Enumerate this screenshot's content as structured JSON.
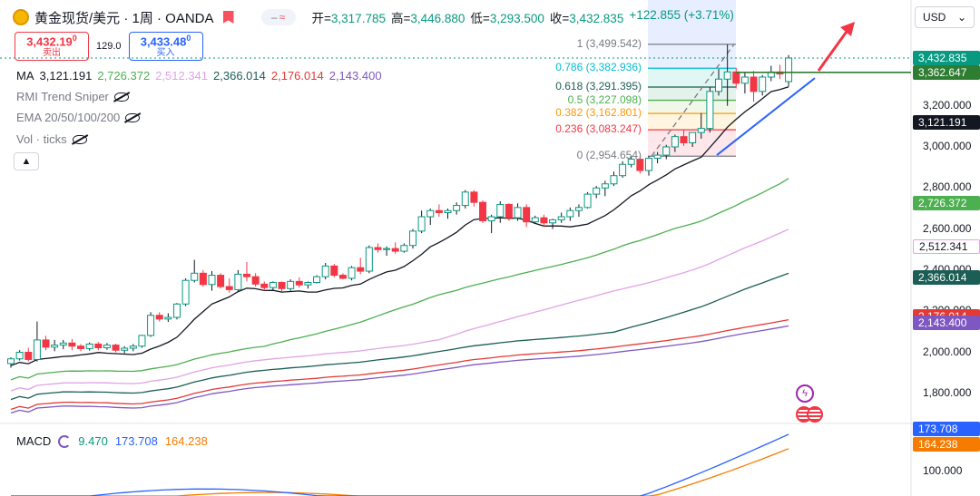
{
  "header": {
    "title": "黄金现货/美元 · 1周 · OANDA",
    "open_label": "开",
    "open": "3,317.785",
    "high_label": "高",
    "high": "3,446.880",
    "low_label": "低",
    "low": "3,293.500",
    "close_label": "收",
    "close": "3,432.835",
    "change": "+122.855 (+3.71%)",
    "visibility_icon": "tilde-icon"
  },
  "trade": {
    "sell_price": "3,432.19",
    "sell_sup": "0",
    "sell_label": "卖出",
    "spread": "129.0",
    "buy_price": "3,433.48",
    "buy_sup": "0",
    "buy_label": "买入"
  },
  "indicators": {
    "ma_label": "MA",
    "ma_values": [
      "3,121.191",
      "2,726.372",
      "2,512.341",
      "2,366.014",
      "2,176.014",
      "2,143.400"
    ],
    "ma_colors": [
      "#131722",
      "#4caf50",
      "#e1a3e6",
      "#1b5e55",
      "#e53935",
      "#7e57c2"
    ],
    "rmi": "RMI Trend Sniper",
    "ema": "EMA 20/50/100/200",
    "vol": "Vol · ticks",
    "collapse_icon": "chevron-up-icon"
  },
  "currency": "USD",
  "price_axis": {
    "ticks": [
      "3,200.000",
      "3,000.000",
      "2,800.000",
      "2,600.000",
      "2,400.000",
      "2,200.000",
      "2,000.000",
      "1,800.000"
    ],
    "tags": [
      {
        "text": "3,432.835",
        "color": "#089981"
      },
      {
        "text": "3,362.647",
        "color": "#2e7d32"
      },
      {
        "text": "3,121.191",
        "color": "#131722"
      },
      {
        "text": "2,726.372",
        "color": "#4caf50"
      },
      {
        "text": "2,512.341",
        "color": "#ffffff"
      },
      {
        "text": "2,366.014",
        "color": "#1b5e55"
      },
      {
        "text": "2,176.014",
        "color": "#e53935"
      },
      {
        "text": "2,143.400",
        "color": "#7e57c2"
      }
    ]
  },
  "fib": [
    {
      "text": "1 (3,499.542)",
      "color": "#787b86"
    },
    {
      "text": "0.786 (3,382.936)",
      "color": "#00bcd4"
    },
    {
      "text": "0.618 (3,291.395)",
      "color": "#1b5e55"
    },
    {
      "text": "0.5 (3,227.098)",
      "color": "#4caf50"
    },
    {
      "text": "0.382 (3,162.801)",
      "color": "#ff9800"
    },
    {
      "text": "0.236 (3,083.247)",
      "color": "#f23645"
    },
    {
      "text": "0 (2,954.654)",
      "color": "#787b86"
    }
  ],
  "macd": {
    "label": "MACD",
    "hist": "9.470",
    "macd": "173.708",
    "signal": "164.238",
    "axis_tick": "100.000",
    "tags": [
      {
        "text": "173.708",
        "color": "#2962ff"
      },
      {
        "text": "164.238",
        "color": "#f57c00"
      }
    ]
  },
  "badges": {
    "bolt_icon": "lightning-icon",
    "flag_icon": "us-flag-icon"
  },
  "chart_data": {
    "type": "candlestick",
    "title": "黄金现货/美元 · 1周 · OANDA",
    "ylim": [
      1700,
      3560
    ],
    "candles": [
      [
        1945,
        1975,
        1925,
        1968
      ],
      [
        1968,
        2010,
        1960,
        2000
      ],
      [
        2000,
        2022,
        1955,
        1965
      ],
      [
        1965,
        2150,
        1955,
        2060
      ],
      [
        2060,
        2080,
        2010,
        2025
      ],
      [
        2025,
        2060,
        2005,
        2035
      ],
      [
        2035,
        2060,
        2015,
        2045
      ],
      [
        2045,
        2065,
        2010,
        2030
      ],
      [
        2030,
        2040,
        2005,
        2018
      ],
      [
        2018,
        2048,
        2008,
        2040
      ],
      [
        2040,
        2050,
        2010,
        2022
      ],
      [
        2022,
        2045,
        2012,
        2035
      ],
      [
        2035,
        2042,
        2000,
        2010
      ],
      [
        2010,
        2030,
        1995,
        2020
      ],
      [
        2020,
        2040,
        2005,
        2030
      ],
      [
        2030,
        2085,
        2022,
        2082
      ],
      [
        2082,
        2195,
        2075,
        2180
      ],
      [
        2180,
        2195,
        2150,
        2162
      ],
      [
        2162,
        2190,
        2148,
        2170
      ],
      [
        2170,
        2240,
        2160,
        2235
      ],
      [
        2235,
        2360,
        2225,
        2350
      ],
      [
        2350,
        2450,
        2340,
        2385
      ],
      [
        2385,
        2400,
        2320,
        2330
      ],
      [
        2330,
        2395,
        2300,
        2375
      ],
      [
        2375,
        2385,
        2310,
        2320
      ],
      [
        2320,
        2360,
        2290,
        2305
      ],
      [
        2305,
        2400,
        2295,
        2380
      ],
      [
        2380,
        2440,
        2345,
        2368
      ],
      [
        2368,
        2385,
        2320,
        2332
      ],
      [
        2332,
        2345,
        2300,
        2315
      ],
      [
        2315,
        2345,
        2300,
        2340
      ],
      [
        2340,
        2345,
        2295,
        2310
      ],
      [
        2310,
        2355,
        2300,
        2345
      ],
      [
        2345,
        2365,
        2315,
        2328
      ],
      [
        2328,
        2345,
        2310,
        2340
      ],
      [
        2340,
        2375,
        2335,
        2368
      ],
      [
        2368,
        2435,
        2355,
        2420
      ],
      [
        2420,
        2430,
        2365,
        2375
      ],
      [
        2375,
        2385,
        2355,
        2360
      ],
      [
        2360,
        2420,
        2350,
        2412
      ],
      [
        2412,
        2460,
        2380,
        2395
      ],
      [
        2395,
        2520,
        2385,
        2510
      ],
      [
        2510,
        2530,
        2485,
        2500
      ],
      [
        2500,
        2515,
        2470,
        2505
      ],
      [
        2505,
        2535,
        2480,
        2492
      ],
      [
        2492,
        2530,
        2485,
        2520
      ],
      [
        2520,
        2600,
        2505,
        2590
      ],
      [
        2590,
        2690,
        2580,
        2660
      ],
      [
        2660,
        2700,
        2620,
        2690
      ],
      [
        2690,
        2720,
        2660,
        2680
      ],
      [
        2680,
        2700,
        2650,
        2690
      ],
      [
        2690,
        2730,
        2670,
        2715
      ],
      [
        2715,
        2790,
        2700,
        2780
      ],
      [
        2780,
        2790,
        2710,
        2730
      ],
      [
        2730,
        2740,
        2630,
        2640
      ],
      [
        2640,
        2670,
        2580,
        2660
      ],
      [
        2660,
        2735,
        2630,
        2720
      ],
      [
        2720,
        2725,
        2640,
        2655
      ],
      [
        2655,
        2725,
        2640,
        2705
      ],
      [
        2705,
        2720,
        2610,
        2635
      ],
      [
        2635,
        2665,
        2625,
        2655
      ],
      [
        2655,
        2670,
        2610,
        2630
      ],
      [
        2630,
        2650,
        2600,
        2645
      ],
      [
        2645,
        2680,
        2630,
        2660
      ],
      [
        2660,
        2705,
        2640,
        2690
      ],
      [
        2690,
        2720,
        2660,
        2705
      ],
      [
        2705,
        2780,
        2700,
        2770
      ],
      [
        2770,
        2810,
        2750,
        2800
      ],
      [
        2800,
        2835,
        2760,
        2820
      ],
      [
        2820,
        2880,
        2810,
        2860
      ],
      [
        2860,
        2930,
        2850,
        2915
      ],
      [
        2915,
        2955,
        2900,
        2940
      ],
      [
        2940,
        2955,
        2870,
        2885
      ],
      [
        2885,
        2955,
        2860,
        2945
      ],
      [
        2945,
        2975,
        2920,
        2960
      ],
      [
        2960,
        3010,
        2940,
        3000
      ],
      [
        3000,
        3060,
        2975,
        3050
      ],
      [
        3050,
        3085,
        3005,
        3020
      ],
      [
        3020,
        3060,
        3000,
        3070
      ],
      [
        3070,
        3165,
        3040,
        3090
      ],
      [
        3090,
        3290,
        3070,
        3270
      ],
      [
        3270,
        3380,
        3250,
        3330
      ],
      [
        3330,
        3499,
        3200,
        3365
      ],
      [
        3365,
        3385,
        3285,
        3310
      ],
      [
        3310,
        3365,
        3260,
        3340
      ],
      [
        3340,
        3370,
        3220,
        3270
      ],
      [
        3270,
        3350,
        3250,
        3340
      ],
      [
        3340,
        3395,
        3320,
        3365
      ],
      [
        3365,
        3400,
        3330,
        3355
      ],
      [
        3318,
        3447,
        3294,
        3433
      ]
    ]
  }
}
